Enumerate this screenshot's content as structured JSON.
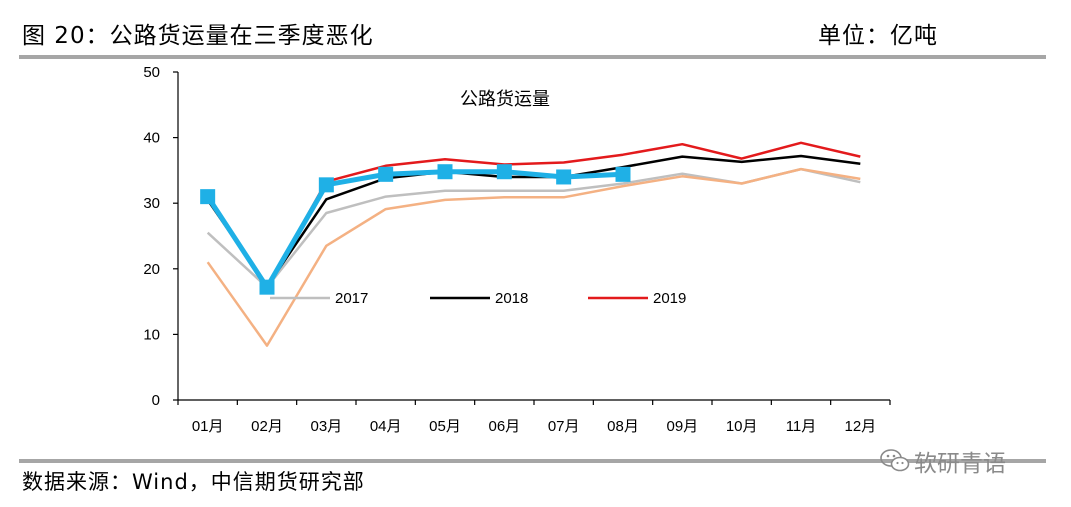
{
  "header": {
    "title": "图 20：公路货运量在三季度恶化",
    "unit": "单位：亿吨"
  },
  "footer": {
    "source": "数据来源：Wind，中信期货研究部"
  },
  "watermark": {
    "text": "软研青语",
    "icon": "wechat-icon"
  },
  "chart_data": {
    "type": "line",
    "title": "公路货运量",
    "categories": [
      "01月",
      "02月",
      "03月",
      "04月",
      "05月",
      "06月",
      "07月",
      "08月",
      "09月",
      "10月",
      "11月",
      "12月"
    ],
    "ylim": [
      0,
      50
    ],
    "yticks": [
      0,
      10,
      20,
      30,
      40,
      50
    ],
    "grid": false,
    "legend_position": "middle",
    "series": [
      {
        "name": "2017",
        "color": "#bfbfbf",
        "width": 2.5,
        "marker": false,
        "values": [
          25.5,
          17.2,
          28.5,
          31.0,
          31.9,
          31.9,
          31.9,
          33.0,
          34.5,
          33.0,
          35.2,
          33.2
        ]
      },
      {
        "name": "2018",
        "color": "#000000",
        "width": 2.5,
        "marker": false,
        "values": [
          30.5,
          17.3,
          30.6,
          33.8,
          34.8,
          34.0,
          34.0,
          35.5,
          37.1,
          36.3,
          37.2,
          36.0
        ]
      },
      {
        "name": "2019",
        "color": "#e31a1c",
        "width": 2.5,
        "marker": false,
        "values": [
          31.0,
          17.2,
          33.3,
          35.7,
          36.7,
          35.9,
          36.2,
          37.4,
          39.0,
          36.8,
          39.2,
          37.1
        ]
      },
      {
        "name": "",
        "color": "#f4b183",
        "width": 2.5,
        "marker": false,
        "values": [
          21.0,
          8.3,
          23.5,
          29.1,
          30.5,
          30.9,
          30.9,
          32.6,
          34.1,
          33.0,
          35.2,
          33.7
        ]
      },
      {
        "name": "",
        "color": "#1fb0e6",
        "width": 5,
        "marker": true,
        "values": [
          31.0,
          17.2,
          32.8,
          34.4,
          34.8,
          34.8,
          34.0,
          34.4,
          null,
          null,
          null,
          null
        ]
      }
    ]
  }
}
